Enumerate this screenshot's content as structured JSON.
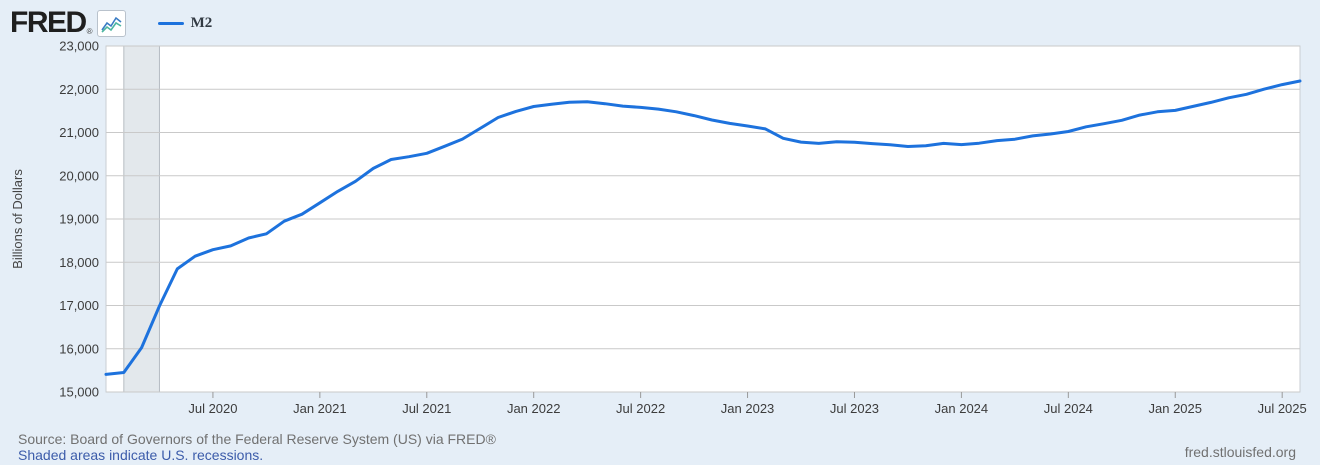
{
  "header": {
    "logo_text": "FRED",
    "logo_reg": "®",
    "legend_label": "M2"
  },
  "footer": {
    "source_line": "Source: Board of Governors of the Federal Reserve System (US) via FRED®",
    "shaded_note": "Shaded areas indicate U.S. recessions.",
    "site": "fred.stlouisfed.org"
  },
  "colors": {
    "background": "#e5eef7",
    "plot_bg": "#ffffff",
    "plot_border": "#c9ced3",
    "grid": "#c9c9c9",
    "line": "#1d72dd",
    "recession": "#e3e8ec",
    "recession_border": "#b6bcc3",
    "tick": "#999999",
    "link": "#3c5caa",
    "muted_text": "#717171",
    "axis_text": "#3c3c3c"
  },
  "chart_data": {
    "type": "line",
    "title": "M2",
    "ylabel": "Billions of Dollars",
    "ylim": [
      15000,
      23000
    ],
    "grid": true,
    "legend_position": "top-left",
    "x_start": "2020-01",
    "x_end": "2025-08",
    "frequency": "monthly",
    "recession_bands": [
      {
        "start": "2020-02",
        "end": "2020-04"
      }
    ],
    "y_ticks": [
      {
        "value": 23000,
        "label": "23,000"
      },
      {
        "value": 22000,
        "label": "22,000"
      },
      {
        "value": 21000,
        "label": "21,000"
      },
      {
        "value": 20000,
        "label": "20,000"
      },
      {
        "value": 19000,
        "label": "19,000"
      },
      {
        "value": 18000,
        "label": "18,000"
      },
      {
        "value": 17000,
        "label": "17,000"
      },
      {
        "value": 16000,
        "label": "16,000"
      },
      {
        "value": 15000,
        "label": "15,000"
      }
    ],
    "x_ticks": [
      {
        "month": 6,
        "label": "Jul 2020"
      },
      {
        "month": 12,
        "label": "Jan 2021"
      },
      {
        "month": 18,
        "label": "Jul 2021"
      },
      {
        "month": 24,
        "label": "Jan 2022"
      },
      {
        "month": 30,
        "label": "Jul 2022"
      },
      {
        "month": 36,
        "label": "Jan 2023"
      },
      {
        "month": 42,
        "label": "Jul 2023"
      },
      {
        "month": 48,
        "label": "Jan 2024"
      },
      {
        "month": 54,
        "label": "Jul 2024"
      },
      {
        "month": 60,
        "label": "Jan 2025"
      },
      {
        "month": 66,
        "label": "Jul 2025"
      }
    ],
    "series": [
      {
        "name": "M2",
        "color": "#1d72dd",
        "units": "Billions of Dollars",
        "values": [
          15408,
          15451,
          16027,
          16991,
          17846,
          18140,
          18290,
          18378,
          18560,
          18658,
          18950,
          19111,
          19375,
          19638,
          19871,
          20171,
          20375,
          20440,
          20519,
          20680,
          20848,
          21094,
          21346,
          21489,
          21600,
          21654,
          21700,
          21712,
          21665,
          21611,
          21580,
          21542,
          21478,
          21390,
          21288,
          21210,
          21151,
          21083,
          20867,
          20777,
          20747,
          20785,
          20776,
          20744,
          20716,
          20676,
          20695,
          20747,
          20721,
          20753,
          20813,
          20846,
          20921,
          20965,
          21024,
          21131,
          21203,
          21281,
          21403,
          21478,
          21510,
          21604,
          21697,
          21802,
          21884,
          22003,
          22108,
          22190
        ]
      }
    ]
  }
}
